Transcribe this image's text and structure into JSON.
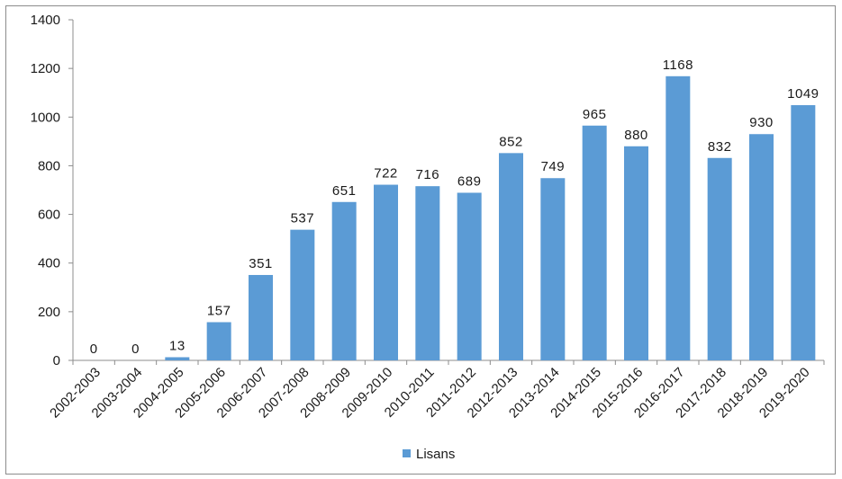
{
  "chart_data": {
    "type": "bar",
    "categories": [
      "2002-2003",
      "2003-2004",
      "2004-2005",
      "2005-2006",
      "2006-2007",
      "2007-2008",
      "2008-2009",
      "2009-2010",
      "2010-2011",
      "2011-2012",
      "2012-2013",
      "2013-2014",
      "2014-2015",
      "2015-2016",
      "2016-2017",
      "2017-2018",
      "2018-2019",
      "2019-2020"
    ],
    "series": [
      {
        "name": "Lisans",
        "values": [
          0,
          0,
          13,
          157,
          351,
          537,
          651,
          722,
          716,
          689,
          852,
          749,
          965,
          880,
          1168,
          832,
          930,
          1049
        ]
      }
    ],
    "ylim": [
      0,
      1400
    ],
    "yticks": [
      0,
      200,
      400,
      600,
      800,
      1000,
      1200,
      1400
    ],
    "grid": false,
    "legend": "bottom-center",
    "colors": {
      "bar": "#5b9bd5",
      "axis": "#8c8c8c",
      "text": "#1a1a1a"
    }
  }
}
